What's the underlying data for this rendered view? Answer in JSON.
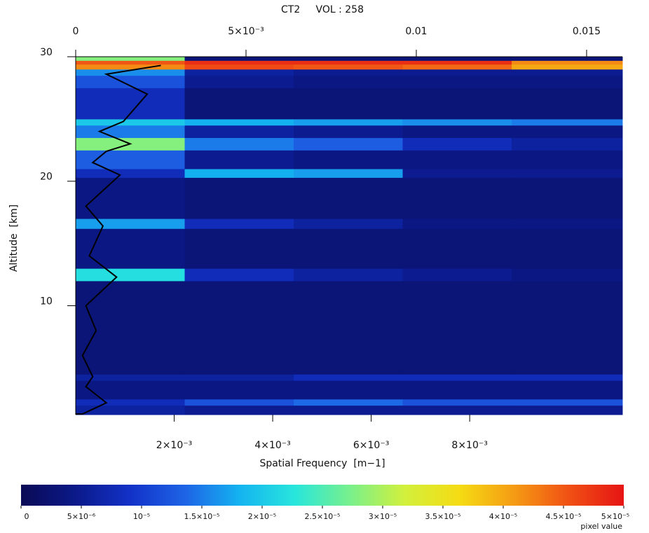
{
  "chart_data": {
    "type": "heatmap",
    "title": "CT2     VOL : 258",
    "xlabel": "Spatial Frequency  [m−1]",
    "ylabel": "Altitude  [km]",
    "xlim": [
      0,
      0.01605
    ],
    "xticks": [
      0,
      {
        "value": 0.005,
        "label": "5×10⁻³"
      },
      0.01,
      0.015
    ],
    "x2lim": [
      0,
      0.0111
    ],
    "x2ticks": [
      {
        "value": 0.002,
        "label": "2×10⁻³"
      },
      {
        "value": 0.004,
        "label": "4×10⁻³"
      },
      {
        "value": 0.006,
        "label": "6×10⁻³"
      },
      {
        "value": 0.008,
        "label": "8×10⁻³"
      }
    ],
    "ylim": [
      1.25,
      30
    ],
    "yticks": [
      10,
      20,
      30
    ],
    "x_edges": [
      0,
      0.0032,
      0.0064,
      0.0096,
      0.0128,
      0.01605
    ],
    "y_edges": [
      1.25,
      2.0,
      2.5,
      4.0,
      4.5,
      12,
      13,
      16.2,
      17,
      20.3,
      21,
      22.5,
      23.5,
      24.5,
      25,
      27.5,
      28.5,
      29,
      29.4,
      29.7,
      30
    ],
    "z": [
      [
        6e-06,
        5e-06,
        5e-06,
        5e-06,
        5e-06
      ],
      [
        8e-06,
        1.2e-05,
        1.4e-05,
        1.2e-05,
        1.2e-05
      ],
      [
        4e-06,
        4e-06,
        4e-06,
        4e-06,
        4e-06
      ],
      [
        6e-06,
        6e-06,
        8e-06,
        8e-06,
        8e-06
      ],
      [
        3e-06,
        3e-06,
        3e-06,
        3e-06,
        3e-06
      ],
      [
        2.2e-05,
        8e-06,
        6e-06,
        5e-06,
        4e-06
      ],
      [
        4e-06,
        3e-06,
        3e-06,
        3e-06,
        3e-06
      ],
      [
        1.7e-05,
        8e-06,
        6e-06,
        4e-06,
        4e-06
      ],
      [
        4e-06,
        3e-06,
        3e-06,
        3e-06,
        3e-06
      ],
      [
        8e-06,
        1.8e-05,
        1.7e-05,
        5e-06,
        5e-06
      ],
      [
        1.3e-05,
        5e-06,
        4e-06,
        4e-06,
        4e-06
      ],
      [
        2.8e-05,
        1.5e-05,
        1.3e-05,
        8e-06,
        6e-06
      ],
      [
        1.5e-05,
        6e-06,
        5e-06,
        4e-06,
        4e-06
      ],
      [
        2e-05,
        1.8e-05,
        1.7e-05,
        1.6e-05,
        1.5e-05
      ],
      [
        8e-06,
        3e-06,
        3e-06,
        3e-06,
        3e-06
      ],
      [
        1.2e-05,
        5e-06,
        4e-06,
        4e-06,
        4e-06
      ],
      [
        1.6e-05,
        6e-06,
        5e-06,
        5e-06,
        5e-06
      ],
      [
        4.2e-05,
        4.6e-05,
        4.5e-05,
        4.4e-05,
        4e-05
      ],
      [
        4.5e-05,
        4.8e-05,
        4.8e-05,
        4.8e-05,
        4.2e-05
      ],
      [
        2.8e-05,
        3e-06,
        3e-06,
        3e-06,
        3e-06
      ]
    ],
    "profile": {
      "color": "#000000",
      "x": [
        0.0002,
        0.0009,
        0.0003,
        0.0005,
        0.0002,
        0.0006,
        0.0003,
        0.0012,
        0.0004,
        0.0008,
        0.0003,
        0.0013,
        0.0005,
        0.0009,
        0.0016,
        0.0007,
        0.0014,
        0.0021,
        0.0009,
        0.0025
      ],
      "y": [
        1.3,
        2.2,
        3.5,
        4.3,
        6,
        8,
        10,
        12.3,
        14,
        16.4,
        18,
        20.5,
        21.5,
        22.4,
        23,
        24,
        24.8,
        27,
        28.6,
        29.3
      ]
    },
    "clim": [
      0,
      5e-05
    ],
    "colors": [
      "#0a0a55",
      "#0b1a8a",
      "#1232c8",
      "#1e64e6",
      "#14b4f0",
      "#28e6dc",
      "#78f08c",
      "#d2f03c",
      "#f5dc14",
      "#f59b14",
      "#f05014",
      "#e61414"
    ],
    "cticks": [
      0,
      {
        "value": 5e-06,
        "label": "5×10⁻⁶"
      },
      {
        "value": 1e-05,
        "label": "10⁻⁵"
      },
      {
        "value": 1.5e-05,
        "label": "1.5×10⁻⁵"
      },
      {
        "value": 2e-05,
        "label": "2×10⁻⁵"
      },
      {
        "value": 2.5e-05,
        "label": "2.5×10⁻⁵"
      },
      {
        "value": 3e-05,
        "label": "3×10⁻⁵"
      },
      {
        "value": 3.5e-05,
        "label": "3.5×10⁻⁵"
      },
      {
        "value": 4e-05,
        "label": "4×10⁻⁵"
      },
      {
        "value": 4.5e-05,
        "label": "4.5×10⁻⁵"
      },
      {
        "value": 5e-05,
        "label": "5×10⁻⁵"
      }
    ],
    "clabel": "pixel value"
  }
}
